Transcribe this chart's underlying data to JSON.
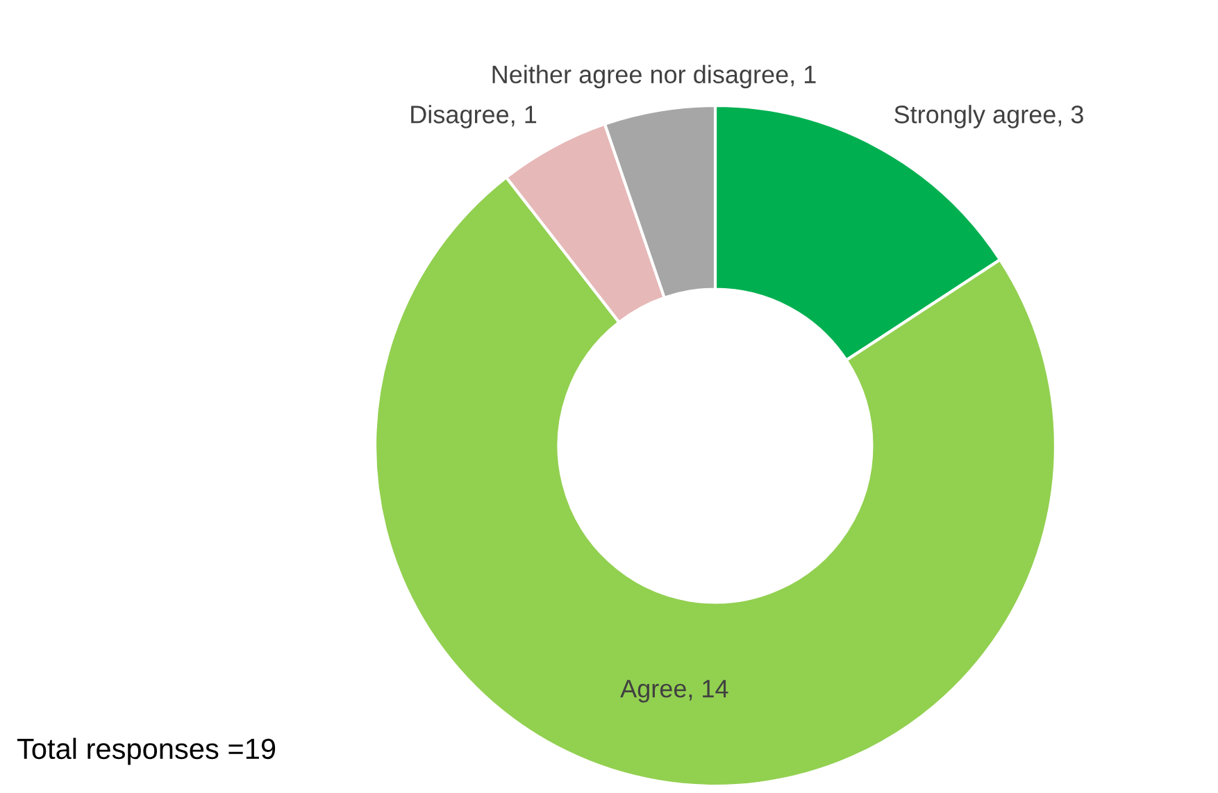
{
  "chart_data": {
    "type": "donut",
    "categories": [
      "Strongly agree",
      "Agree",
      "Disagree",
      "Neither agree nor disagree"
    ],
    "values": [
      3,
      14,
      1,
      1
    ],
    "colors": [
      "#00b050",
      "#92d050",
      "#e6b8b7",
      "#a6a6a6"
    ],
    "value_labels": [
      ", 3",
      ", 14",
      ", 1",
      ", 1"
    ],
    "legend": false,
    "annotations": [
      "Total responses =19"
    ]
  }
}
